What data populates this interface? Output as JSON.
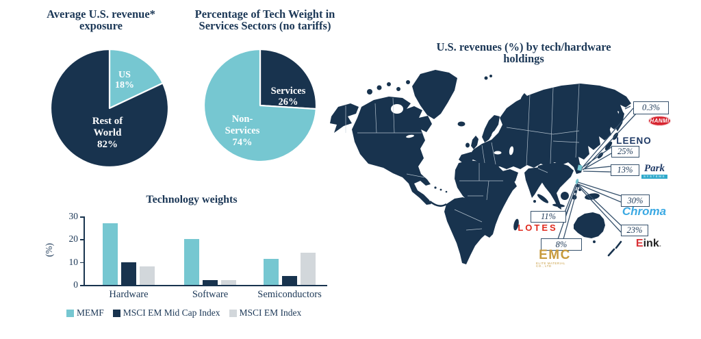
{
  "colors": {
    "navy": "#18334E",
    "teal": "#76C7D1",
    "gray": "#D2D7DB",
    "hanmi_red": "#D6232E",
    "lotes_red": "#E02A1E",
    "chroma_blue": "#3BA9E3",
    "emc_gold": "#C79A3C",
    "eink_red": "#D93036",
    "park_teal": "#2EA9CB"
  },
  "logos": {
    "hanmi": "HANMI",
    "leeno": "LEENO",
    "park_script": "Park",
    "park_sub": "SYSTEMS",
    "chroma": "Chroma",
    "eink_e": "E",
    "eink_rest": "ink",
    "eink_dot": ".",
    "lotes": "LOTES",
    "emc": "EMC",
    "emc_sub": "ELITE MATERIAL CO., LTD"
  },
  "chart_data": [
    {
      "id": "us-revenue-exposure-pie",
      "type": "pie",
      "title": "Average U.S. revenue* exposure",
      "title_lines": [
        "Average U.S. revenue*",
        "exposure"
      ],
      "labels": [
        "US",
        "Rest of World"
      ],
      "values": [
        18,
        82
      ],
      "colors": [
        "#76C7D1",
        "#18334E"
      ],
      "slice_label_lines": [
        [
          "US",
          "18%"
        ],
        [
          "Rest of",
          "World",
          "82%"
        ]
      ],
      "legend_position": "none"
    },
    {
      "id": "tech-weight-services-pie",
      "type": "pie",
      "title": "Percentage of Tech Weight in Services Sectors (no tariffs)",
      "title_lines": [
        "Percentage of Tech Weight in",
        "Services Sectors (no tariffs)"
      ],
      "labels": [
        "Services",
        "Non-Services"
      ],
      "values": [
        26,
        74
      ],
      "colors": [
        "#18334E",
        "#76C7D1"
      ],
      "slice_label_lines": [
        [
          "Services",
          "26%"
        ],
        [
          "Non-",
          "Services",
          "74%"
        ]
      ],
      "legend_position": "none"
    },
    {
      "id": "technology-weights-bar",
      "type": "bar",
      "title": "Technology weights",
      "xlabel": "",
      "ylabel": "(%)",
      "ylim": [
        0,
        30
      ],
      "yticks": [
        30,
        20,
        10,
        0
      ],
      "grid": false,
      "legend_position": "bottom",
      "categories": [
        "Hardware",
        "Software",
        "Semiconductors"
      ],
      "series": [
        {
          "name": "MEMF",
          "color": "#76C7D1",
          "values": [
            27,
            20,
            11.5
          ]
        },
        {
          "name": "MSCI EM Mid Cap Index",
          "color": "#18334E",
          "values": [
            10,
            2,
            4
          ]
        },
        {
          "name": "MSCI EM Index",
          "color": "#D2D7DB",
          "values": [
            8,
            2,
            14
          ]
        }
      ]
    },
    {
      "id": "us-revenues-by-holding-map",
      "type": "map",
      "title": "U.S. revenues (%) by tech/hardware holdings",
      "title_lines": [
        "U.S. revenues (%) by tech/hardware",
        "holdings"
      ],
      "callouts": [
        {
          "company": "Hanmi",
          "pct": "0.3%",
          "country_highlight": "South Korea"
        },
        {
          "company": "Leeno",
          "pct": "25%",
          "country_highlight": "South Korea"
        },
        {
          "company": "Park Systems",
          "pct": "13%",
          "country_highlight": "South Korea"
        },
        {
          "company": "Chroma",
          "pct": "30%",
          "country_highlight": "Taiwan"
        },
        {
          "company": "E Ink",
          "pct": "23%",
          "country_highlight": "Taiwan"
        },
        {
          "company": "Lotes",
          "pct": "11%",
          "country_highlight": "Taiwan"
        },
        {
          "company": "EMC (Elite Material Co., Ltd)",
          "pct": "8%",
          "country_highlight": "Taiwan"
        }
      ]
    }
  ]
}
